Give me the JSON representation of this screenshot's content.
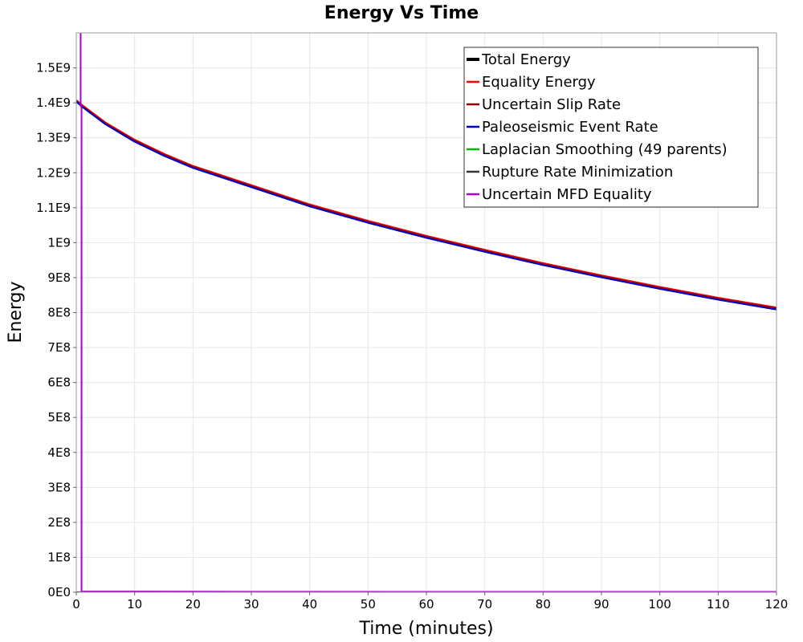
{
  "chart_data": {
    "type": "line",
    "title": "Energy Vs Time",
    "xlabel": "Time (minutes)",
    "ylabel": "Energy",
    "xlim": [
      0,
      120
    ],
    "ylim": [
      0,
      1600000000
    ],
    "x_ticks": [
      0,
      10,
      20,
      30,
      40,
      50,
      60,
      70,
      80,
      90,
      100,
      110,
      120
    ],
    "x_tick_labels": [
      "0",
      "10",
      "20",
      "30",
      "40",
      "50",
      "60",
      "70",
      "80",
      "90",
      "100",
      "110",
      "120"
    ],
    "y_ticks": [
      0,
      100000000,
      200000000,
      300000000,
      400000000,
      500000000,
      600000000,
      700000000,
      800000000,
      900000000,
      1000000000,
      1100000000,
      1200000000,
      1300000000,
      1400000000,
      1500000000
    ],
    "y_tick_labels": [
      "0E0",
      "1E8",
      "2E8",
      "3E8",
      "4E8",
      "5E8",
      "6E8",
      "7E8",
      "8E8",
      "9E8",
      "1E9",
      "1.1E9",
      "1.2E9",
      "1.3E9",
      "1.4E9",
      "1.5E9"
    ],
    "grid": true,
    "legend_position": "top-right",
    "series": [
      {
        "name": "Total Energy",
        "color": "#000000",
        "x": [
          0,
          1,
          5,
          10,
          15,
          20,
          30,
          40,
          50,
          60,
          70,
          80,
          90,
          100,
          110,
          120
        ],
        "y": [
          1405000000,
          1390000000,
          1340000000,
          1290000000,
          1250000000,
          1215000000,
          1160000000,
          1105000000,
          1058000000,
          1015000000,
          975000000,
          937000000,
          902000000,
          869000000,
          838000000,
          810000000
        ]
      },
      {
        "name": "Equality Energy",
        "color": "#ff0000",
        "x": [
          0,
          1,
          5,
          10,
          15,
          20,
          30,
          40,
          50,
          60,
          70,
          80,
          90,
          100,
          110,
          120
        ],
        "y": [
          1407000000,
          1393000000,
          1343000000,
          1294000000,
          1254000000,
          1219000000,
          1164000000,
          1109000000,
          1062000000,
          1019000000,
          979000000,
          941000000,
          906000000,
          873000000,
          842000000,
          814000000
        ]
      },
      {
        "name": "Uncertain Slip Rate",
        "color": "#990000",
        "x": [
          0,
          1,
          5,
          10,
          15,
          20,
          30,
          40,
          50,
          60,
          70,
          80,
          90,
          100,
          110,
          120
        ],
        "y": [
          1405000000,
          1391000000,
          1341000000,
          1292000000,
          1252000000,
          1217000000,
          1162000000,
          1107000000,
          1060000000,
          1017000000,
          977000000,
          939000000,
          904000000,
          871000000,
          840000000,
          812000000
        ]
      },
      {
        "name": "Paleoseismic Event Rate",
        "color": "#0000cc",
        "x": [
          0,
          1,
          5,
          10,
          15,
          20,
          30,
          40,
          50,
          60,
          70,
          80,
          90,
          100,
          110,
          120
        ],
        "y": [
          1404000000,
          1389000000,
          1339000000,
          1289000000,
          1249000000,
          1214000000,
          1159000000,
          1104000000,
          1057000000,
          1014000000,
          974000000,
          936000000,
          901000000,
          868000000,
          837000000,
          809000000
        ]
      },
      {
        "name": "Laplacian Smoothing (49 parents)",
        "color": "#00bb00",
        "x": [
          0,
          0.7,
          1,
          10,
          30,
          60,
          90,
          120
        ],
        "y": [
          0,
          0,
          1000000,
          1000000,
          500000,
          500000,
          500000,
          500000
        ]
      },
      {
        "name": "Rupture Rate Minimization",
        "color": "#333333",
        "x": [
          0,
          0.7,
          1,
          10,
          30,
          60,
          90,
          120
        ],
        "y": [
          0,
          0,
          1500000,
          1500000,
          800000,
          600000,
          500000,
          500000
        ]
      },
      {
        "name": "Uncertain MFD Equality",
        "color": "#aa00cc",
        "x": [
          0.75,
          0.75,
          0.9,
          0.9,
          1.2,
          10,
          30,
          60,
          90,
          120
        ],
        "y": [
          1600000000,
          1390000000,
          1390000000,
          0,
          2000000,
          2000000,
          1500000,
          1200000,
          1000000,
          1000000
        ]
      }
    ]
  }
}
